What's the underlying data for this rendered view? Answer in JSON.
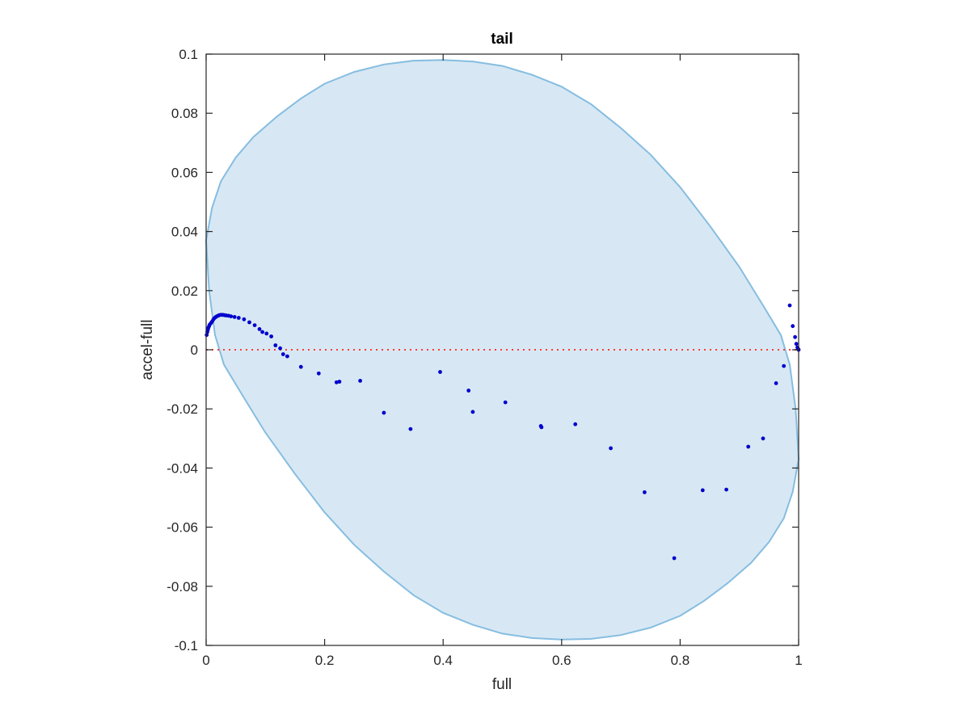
{
  "chart_data": {
    "type": "scatter",
    "title": "tail",
    "xlabel": "full",
    "ylabel": "accel-full",
    "xlim": [
      0,
      1
    ],
    "ylim": [
      -0.1,
      0.1
    ],
    "x_ticks": [
      0,
      0.2,
      0.4,
      0.6,
      0.8,
      1
    ],
    "x_tick_labels": [
      "0",
      "0.2",
      "0.4",
      "0.6",
      "0.8",
      "1"
    ],
    "y_ticks": [
      -0.1,
      -0.08,
      -0.06,
      -0.04,
      -0.02,
      0,
      0.02,
      0.04,
      0.06,
      0.08,
      0.1
    ],
    "y_tick_labels": [
      "-0.1",
      "-0.08",
      "-0.06",
      "-0.04",
      "-0.02",
      "0",
      "0.02",
      "0.04",
      "0.06",
      "0.08",
      "0.1"
    ],
    "grid": false,
    "reference_line": {
      "y": 0,
      "style": "dotted",
      "color": "#ff3b3b"
    },
    "region": {
      "description_shape": "ellipse",
      "fill": "#d7e8f4",
      "stroke": "#86bde0",
      "boundary": [
        [
          0,
          0.037
        ],
        [
          0.01,
          0.048
        ],
        [
          0.025,
          0.057
        ],
        [
          0.05,
          0.065
        ],
        [
          0.08,
          0.072
        ],
        [
          0.12,
          0.079
        ],
        [
          0.16,
          0.085
        ],
        [
          0.2,
          0.09
        ],
        [
          0.25,
          0.094
        ],
        [
          0.3,
          0.0965
        ],
        [
          0.35,
          0.0978
        ],
        [
          0.4,
          0.098
        ],
        [
          0.45,
          0.0975
        ],
        [
          0.5,
          0.096
        ],
        [
          0.55,
          0.093
        ],
        [
          0.6,
          0.089
        ],
        [
          0.65,
          0.083
        ],
        [
          0.7,
          0.075
        ],
        [
          0.75,
          0.066
        ],
        [
          0.8,
          0.055
        ],
        [
          0.85,
          0.042
        ],
        [
          0.9,
          0.028
        ],
        [
          0.94,
          0.015
        ],
        [
          0.97,
          0.005
        ],
        [
          0.985,
          -0.005
        ],
        [
          0.995,
          -0.02
        ],
        [
          1.0,
          -0.037
        ],
        [
          0.99,
          -0.048
        ],
        [
          0.975,
          -0.057
        ],
        [
          0.95,
          -0.065
        ],
        [
          0.92,
          -0.072
        ],
        [
          0.88,
          -0.079
        ],
        [
          0.84,
          -0.085
        ],
        [
          0.8,
          -0.09
        ],
        [
          0.75,
          -0.094
        ],
        [
          0.7,
          -0.0965
        ],
        [
          0.65,
          -0.0978
        ],
        [
          0.6,
          -0.098
        ],
        [
          0.55,
          -0.0975
        ],
        [
          0.5,
          -0.096
        ],
        [
          0.45,
          -0.093
        ],
        [
          0.4,
          -0.089
        ],
        [
          0.35,
          -0.083
        ],
        [
          0.3,
          -0.075
        ],
        [
          0.25,
          -0.066
        ],
        [
          0.2,
          -0.055
        ],
        [
          0.15,
          -0.042
        ],
        [
          0.1,
          -0.028
        ],
        [
          0.06,
          -0.015
        ],
        [
          0.03,
          -0.005
        ],
        [
          0.015,
          0.005
        ],
        [
          0.005,
          0.02
        ],
        [
          0,
          0.037
        ]
      ]
    },
    "series": [
      {
        "marker_color": "#0000cc",
        "points": [
          [
            0.001,
            0.005
          ],
          [
            0.002,
            0.006
          ],
          [
            0.003,
            0.0068
          ],
          [
            0.004,
            0.0075
          ],
          [
            0.005,
            0.008
          ],
          [
            0.006,
            0.0085
          ],
          [
            0.008,
            0.009
          ],
          [
            0.01,
            0.0095
          ],
          [
            0.012,
            0.0102
          ],
          [
            0.014,
            0.0107
          ],
          [
            0.016,
            0.011
          ],
          [
            0.018,
            0.0113
          ],
          [
            0.02,
            0.0115
          ],
          [
            0.022,
            0.0117
          ],
          [
            0.025,
            0.0118
          ],
          [
            0.028,
            0.0118
          ],
          [
            0.031,
            0.0117
          ],
          [
            0.034,
            0.0116
          ],
          [
            0.038,
            0.0115
          ],
          [
            0.042,
            0.0113
          ],
          [
            0.048,
            0.0111
          ],
          [
            0.055,
            0.0108
          ],
          [
            0.064,
            0.0103
          ],
          [
            0.073,
            0.0093
          ],
          [
            0.082,
            0.0083
          ],
          [
            0.09,
            0.007
          ],
          [
            0.095,
            0.006
          ],
          [
            0.102,
            0.0055
          ],
          [
            0.11,
            0.0045
          ],
          [
            0.117,
            0.0015
          ],
          [
            0.125,
            0.0005
          ],
          [
            0.13,
            -0.0015
          ],
          [
            0.137,
            -0.0022
          ],
          [
            0.16,
            -0.0058
          ],
          [
            0.19,
            -0.008
          ],
          [
            0.22,
            -0.011
          ],
          [
            0.225,
            -0.0108
          ],
          [
            0.26,
            -0.0105
          ],
          [
            0.3,
            -0.0213
          ],
          [
            0.345,
            -0.0268
          ],
          [
            0.395,
            -0.0075
          ],
          [
            0.443,
            -0.0138
          ],
          [
            0.45,
            -0.021
          ],
          [
            0.505,
            -0.0178
          ],
          [
            0.565,
            -0.0258
          ],
          [
            0.566,
            -0.0262
          ],
          [
            0.623,
            -0.0252
          ],
          [
            0.683,
            -0.0333
          ],
          [
            0.74,
            -0.0482
          ],
          [
            0.79,
            -0.0705
          ],
          [
            0.838,
            -0.0475
          ],
          [
            0.878,
            -0.0473
          ],
          [
            0.915,
            -0.0328
          ],
          [
            0.94,
            -0.03
          ],
          [
            0.962,
            -0.0113
          ],
          [
            0.975,
            -0.0055
          ],
          [
            0.985,
            0.015
          ],
          [
            0.99,
            0.008
          ],
          [
            0.994,
            0.0043
          ],
          [
            0.996,
            0.002
          ],
          [
            0.998,
            0.0008
          ],
          [
            0.999,
            0.0003
          ],
          [
            1.0,
            0.0
          ]
        ]
      }
    ]
  }
}
